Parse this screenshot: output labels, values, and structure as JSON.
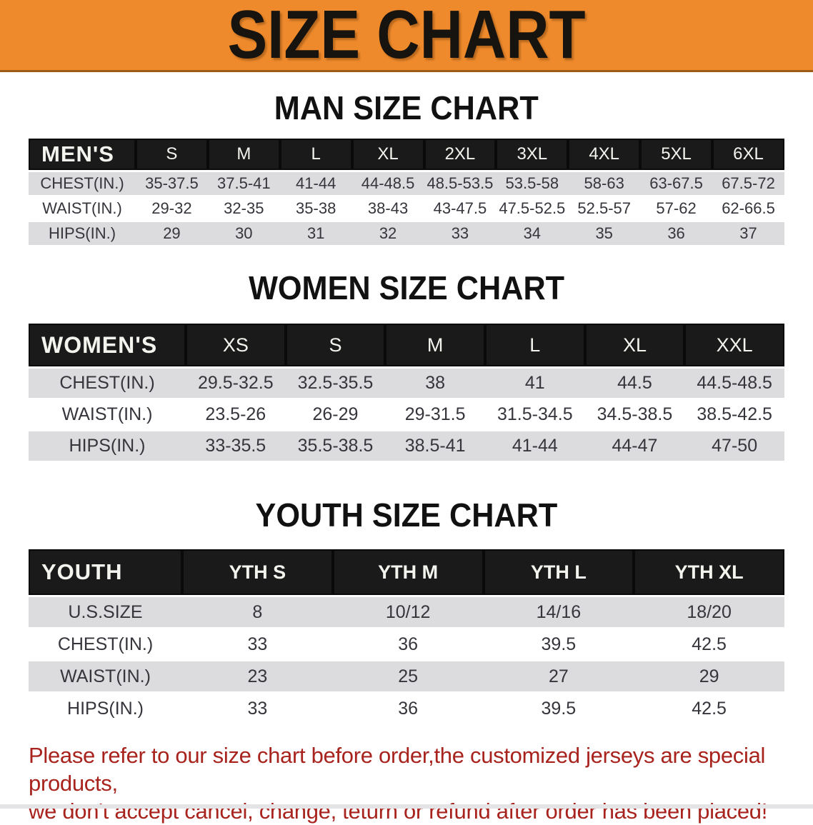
{
  "banner": {
    "title": "SIZE CHART"
  },
  "sections": [
    {
      "heading": "MAN SIZE CHART",
      "header_label": "MEN'S",
      "columns": [
        "S",
        "M",
        "L",
        "XL",
        "2XL",
        "3XL",
        "4XL",
        "5XL",
        "6XL"
      ],
      "rows": [
        {
          "label": "CHEST(IN.)",
          "values": [
            "35-37.5",
            "37.5-41",
            "41-44",
            "44-48.5",
            "48.5-53.5",
            "53.5-58",
            "58-63",
            "63-67.5",
            "67.5-72"
          ]
        },
        {
          "label": "WAIST(IN.)",
          "values": [
            "29-32",
            "32-35",
            "35-38",
            "38-43",
            "43-47.5",
            "47.5-52.5",
            "52.5-57",
            "57-62",
            "62-66.5"
          ]
        },
        {
          "label": "HIPS(IN.)",
          "values": [
            "29",
            "30",
            "31",
            "32",
            "33",
            "34",
            "35",
            "36",
            "37"
          ]
        }
      ]
    },
    {
      "heading": "WOMEN SIZE CHART",
      "header_label": "WOMEN'S",
      "columns": [
        "XS",
        "S",
        "M",
        "L",
        "XL",
        "XXL"
      ],
      "rows": [
        {
          "label": "CHEST(IN.)",
          "values": [
            "29.5-32.5",
            "32.5-35.5",
            "38",
            "41",
            "44.5",
            "44.5-48.5"
          ]
        },
        {
          "label": "WAIST(IN.)",
          "values": [
            "23.5-26",
            "26-29",
            "29-31.5",
            "31.5-34.5",
            "34.5-38.5",
            "38.5-42.5"
          ]
        },
        {
          "label": "HIPS(IN.)",
          "values": [
            "33-35.5",
            "35.5-38.5",
            "38.5-41",
            "41-44",
            "44-47",
            "47-50"
          ]
        }
      ]
    },
    {
      "heading": "YOUTH SIZE CHART",
      "header_label": "YOUTH",
      "columns": [
        "YTH S",
        "YTH M",
        "YTH L",
        "YTH XL"
      ],
      "rows": [
        {
          "label": "U.S.SIZE",
          "values": [
            "8",
            "10/12",
            "14/16",
            "18/20"
          ]
        },
        {
          "label": "CHEST(IN.)",
          "values": [
            "33",
            "36",
            "39.5",
            "42.5"
          ]
        },
        {
          "label": "WAIST(IN.)",
          "values": [
            "23",
            "25",
            "27",
            "29"
          ]
        },
        {
          "label": "HIPS(IN.)",
          "values": [
            "33",
            "36",
            "39.5",
            "42.5"
          ]
        }
      ]
    }
  ],
  "footer": {
    "line1": "Please refer to our size chart before order,the customized jerseys are special products,",
    "line2": "we don't accept cancel, change, teturn or refund after order has been placed!"
  },
  "colors": {
    "banner-bg": "#ee8a2c",
    "header-bg": "#1a1a1a",
    "stripe-gray": "#dcdcde",
    "warning-red": "#a8231d"
  }
}
